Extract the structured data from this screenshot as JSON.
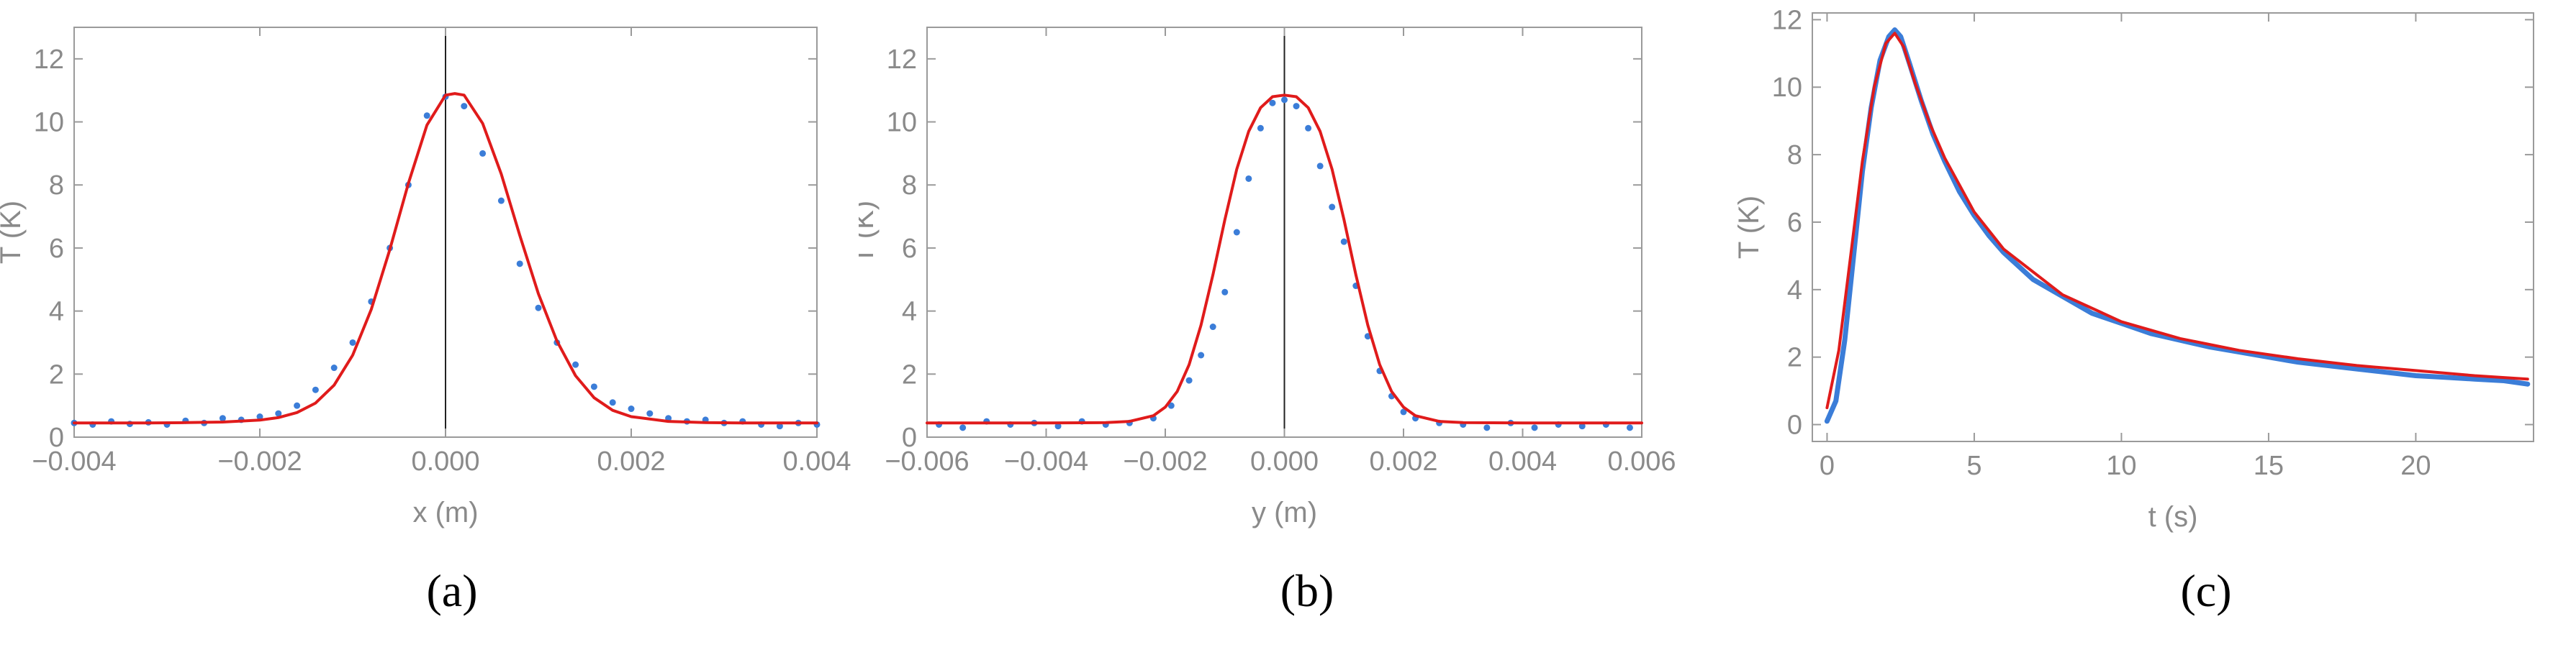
{
  "chart_data": [
    {
      "type": "scatter",
      "panel_label": "(a)",
      "xlabel": "x (m)",
      "ylabel": "T (K)",
      "xlim": [
        -0.004,
        0.004
      ],
      "ylim": [
        0,
        13
      ],
      "x_ticks": [
        "-0.004",
        "-0.002",
        "0.000",
        "0.002",
        "0.004"
      ],
      "y_ticks": [
        "0",
        "2",
        "4",
        "6",
        "8",
        "10",
        "12"
      ],
      "grid": false,
      "frame": true,
      "series": [
        {
          "kind": "points",
          "color": "#3b7dd8",
          "x": [
            -0.004,
            -0.0038,
            -0.0036,
            -0.0034,
            -0.0032,
            -0.003,
            -0.0028,
            -0.0026,
            -0.0024,
            -0.0022,
            -0.002,
            -0.0018,
            -0.0016,
            -0.0014,
            -0.0012,
            -0.001,
            -0.0008,
            -0.0006,
            -0.0004,
            -0.0002,
            0.0,
            0.0002,
            0.0004,
            0.0006,
            0.0008,
            0.001,
            0.0012,
            0.0014,
            0.0016,
            0.0018,
            0.002,
            0.0022,
            0.0024,
            0.0026,
            0.0028,
            0.003,
            0.0032,
            0.0034,
            0.0036,
            0.0038,
            0.004
          ],
          "y": [
            0.45,
            0.4,
            0.5,
            0.42,
            0.47,
            0.4,
            0.52,
            0.45,
            0.6,
            0.55,
            0.65,
            0.75,
            1.0,
            1.5,
            2.2,
            3.0,
            4.3,
            6.0,
            8.0,
            10.2,
            10.8,
            10.5,
            9.0,
            7.5,
            5.5,
            4.1,
            3.0,
            2.3,
            1.6,
            1.1,
            0.9,
            0.75,
            0.6,
            0.5,
            0.55,
            0.45,
            0.5,
            0.4,
            0.35,
            0.45,
            0.4
          ]
        },
        {
          "kind": "fit",
          "color": "#e01b1b",
          "x": [
            -0.004,
            -0.0036,
            -0.0032,
            -0.0028,
            -0.0024,
            -0.002,
            -0.0018,
            -0.0016,
            -0.0014,
            -0.0012,
            -0.001,
            -0.0008,
            -0.0006,
            -0.0004,
            -0.0002,
            0.0,
            0.0001,
            0.0002,
            0.0004,
            0.0006,
            0.0008,
            0.001,
            0.0012,
            0.0014,
            0.0016,
            0.0018,
            0.002,
            0.0024,
            0.0028,
            0.0032,
            0.0036,
            0.004
          ],
          "y": [
            0.45,
            0.45,
            0.45,
            0.46,
            0.48,
            0.54,
            0.62,
            0.78,
            1.08,
            1.65,
            2.6,
            4.05,
            5.95,
            8.05,
            9.9,
            10.85,
            10.9,
            10.85,
            9.95,
            8.35,
            6.4,
            4.55,
            3.05,
            1.95,
            1.25,
            0.85,
            0.65,
            0.5,
            0.46,
            0.45,
            0.45,
            0.45
          ]
        }
      ]
    },
    {
      "type": "scatter",
      "panel_label": "(b)",
      "xlabel": "y (m)",
      "ylabel": "T (K)",
      "xlim": [
        -0.006,
        0.006
      ],
      "ylim": [
        0,
        13
      ],
      "x_ticks": [
        "-0.006",
        "-0.004",
        "-0.002",
        "0.000",
        "0.002",
        "0.004",
        "0.006"
      ],
      "y_ticks": [
        "0",
        "2",
        "4",
        "6",
        "8",
        "10",
        "12"
      ],
      "grid": false,
      "frame": true,
      "series": [
        {
          "kind": "points",
          "color": "#3b7dd8",
          "x": [
            -0.0058,
            -0.0054,
            -0.005,
            -0.0046,
            -0.0042,
            -0.0038,
            -0.0034,
            -0.003,
            -0.0026,
            -0.0022,
            -0.0019,
            -0.0016,
            -0.0014,
            -0.0012,
            -0.001,
            -0.0008,
            -0.0006,
            -0.0004,
            -0.0002,
            0.0,
            0.0002,
            0.0004,
            0.0006,
            0.0008,
            0.001,
            0.0012,
            0.0014,
            0.0016,
            0.0018,
            0.002,
            0.0022,
            0.0026,
            0.003,
            0.0034,
            0.0038,
            0.0042,
            0.0046,
            0.005,
            0.0054,
            0.0058
          ],
          "y": [
            0.4,
            0.3,
            0.5,
            0.4,
            0.45,
            0.35,
            0.5,
            0.4,
            0.45,
            0.6,
            1.0,
            1.8,
            2.6,
            3.5,
            4.6,
            6.5,
            8.2,
            9.8,
            10.6,
            10.7,
            10.5,
            9.8,
            8.6,
            7.3,
            6.2,
            4.8,
            3.2,
            2.1,
            1.3,
            0.8,
            0.6,
            0.45,
            0.4,
            0.3,
            0.45,
            0.3,
            0.4,
            0.35,
            0.4,
            0.3
          ]
        },
        {
          "kind": "fit",
          "color": "#e01b1b",
          "x": [
            -0.006,
            -0.005,
            -0.004,
            -0.003,
            -0.0026,
            -0.0022,
            -0.002,
            -0.0018,
            -0.0016,
            -0.0014,
            -0.0012,
            -0.001,
            -0.0008,
            -0.0006,
            -0.0004,
            -0.0002,
            0.0,
            0.0002,
            0.0004,
            0.0006,
            0.0008,
            0.001,
            0.0012,
            0.0014,
            0.0016,
            0.0018,
            0.002,
            0.0022,
            0.0026,
            0.003,
            0.004,
            0.005,
            0.006
          ],
          "y": [
            0.45,
            0.45,
            0.45,
            0.46,
            0.5,
            0.68,
            0.95,
            1.45,
            2.3,
            3.55,
            5.15,
            6.9,
            8.5,
            9.7,
            10.45,
            10.8,
            10.85,
            10.8,
            10.45,
            9.7,
            8.5,
            6.9,
            5.15,
            3.55,
            2.3,
            1.45,
            0.95,
            0.68,
            0.5,
            0.46,
            0.45,
            0.45,
            0.45
          ]
        }
      ]
    },
    {
      "type": "line",
      "panel_label": "(c)",
      "xlabel": "t (s)",
      "ylabel": "T (K)",
      "xlim": [
        -0.5,
        24
      ],
      "ylim": [
        -0.5,
        12.2
      ],
      "x_ticks": [
        "0",
        "5",
        "10",
        "15",
        "20"
      ],
      "y_ticks": [
        "0",
        "2",
        "4",
        "6",
        "8",
        "10",
        "12"
      ],
      "grid": false,
      "frame": true,
      "series": [
        {
          "kind": "data",
          "color": "#3b7dd8",
          "x": [
            0.0,
            0.3,
            0.6,
            0.9,
            1.2,
            1.5,
            1.8,
            2.1,
            2.3,
            2.5,
            2.8,
            3.2,
            3.6,
            4.0,
            4.5,
            5.0,
            5.5,
            6.0,
            7.0,
            8.0,
            9.0,
            10.0,
            11.0,
            12.0,
            13.0,
            14.0,
            15.0,
            16.0,
            17.0,
            18.0,
            19.0,
            20.0,
            21.0,
            22.0,
            23.0,
            23.8
          ],
          "y": [
            0.1,
            0.7,
            2.5,
            5.0,
            7.5,
            9.4,
            10.8,
            11.5,
            11.7,
            11.5,
            10.7,
            9.6,
            8.6,
            7.8,
            6.9,
            6.2,
            5.6,
            5.1,
            4.3,
            3.8,
            3.3,
            3.0,
            2.7,
            2.5,
            2.3,
            2.15,
            2.0,
            1.85,
            1.75,
            1.65,
            1.55,
            1.45,
            1.4,
            1.35,
            1.3,
            1.2
          ]
        },
        {
          "kind": "fit",
          "color": "#e01b1b",
          "x": [
            0.0,
            0.4,
            0.8,
            1.2,
            1.6,
            2.0,
            2.3,
            2.6,
            3.0,
            3.5,
            4.0,
            5.0,
            6.0,
            8.0,
            10.0,
            12.0,
            14.0,
            16.0,
            18.0,
            20.0,
            22.0,
            23.8
          ],
          "y": [
            0.5,
            2.2,
            5.0,
            7.8,
            10.0,
            11.3,
            11.6,
            11.2,
            10.1,
            8.9,
            7.9,
            6.3,
            5.2,
            3.85,
            3.05,
            2.55,
            2.2,
            1.95,
            1.75,
            1.6,
            1.45,
            1.35
          ]
        }
      ]
    }
  ]
}
